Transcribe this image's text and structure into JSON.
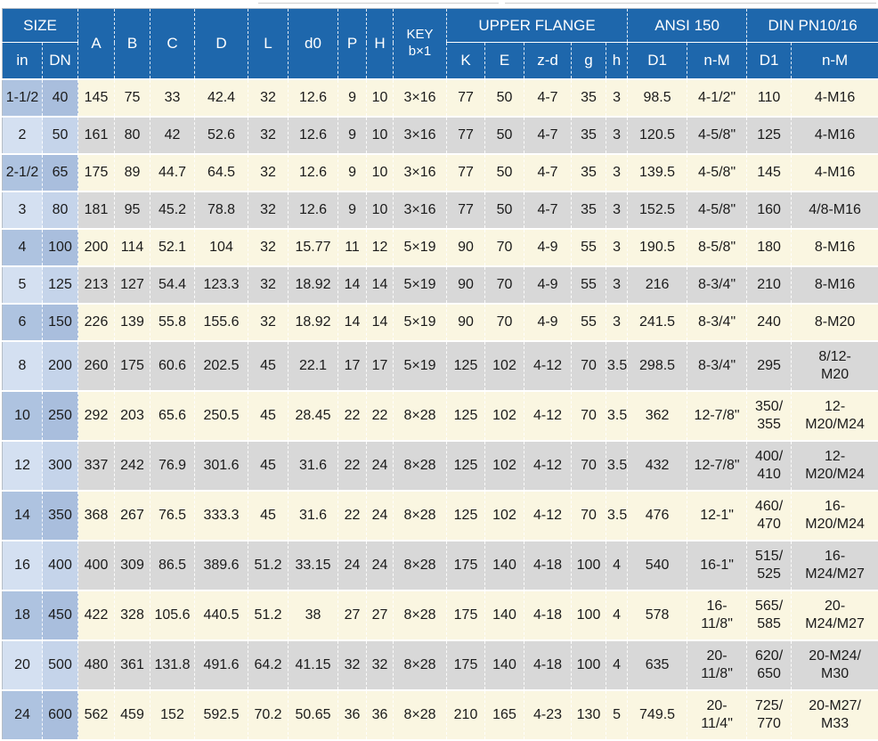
{
  "colors": {
    "header_blue": "#1e67ac",
    "row_cream": "#faf6e1",
    "row_gray": "#d8d8d8",
    "size_col_dark": "#a9bedd",
    "size_col_light": "#c9d7ec",
    "grid_line": "#ffffff"
  },
  "table": {
    "header": {
      "size_group": "SIZE",
      "size_sub": [
        "in",
        "DN"
      ],
      "dim_cols": [
        "A",
        "B",
        "C",
        "D",
        "L",
        "d0",
        "P",
        "H"
      ],
      "key_col": {
        "line1": "KEY",
        "line2": "b×1"
      },
      "upper_flange_group": "UPPER FLANGE",
      "upper_flange_sub": [
        "K",
        "E",
        "z-d",
        "g",
        "h"
      ],
      "ansi_group": "ANSI 150",
      "ansi_sub": [
        "D1",
        "n-M"
      ],
      "din_group": "DIN PN10/16",
      "din_sub": [
        "D1",
        "n-M"
      ]
    },
    "column_keys": [
      "in",
      "dn",
      "a",
      "b",
      "c",
      "d",
      "l",
      "d0",
      "p",
      "h",
      "key",
      "k",
      "e",
      "zd",
      "g",
      "h2",
      "ansi-d1",
      "ansi-nm",
      "din-d1",
      "din-nm"
    ],
    "rows": [
      [
        "1-1/2",
        "40",
        "145",
        "75",
        "33",
        "42.4",
        "32",
        "12.6",
        "9",
        "10",
        "3×16",
        "77",
        "50",
        "4-7",
        "35",
        "3",
        "98.5",
        "4-1/2\"",
        "110",
        "4-M16"
      ],
      [
        "2",
        "50",
        "161",
        "80",
        "42",
        "52.6",
        "32",
        "12.6",
        "9",
        "10",
        "3×16",
        "77",
        "50",
        "4-7",
        "35",
        "3",
        "120.5",
        "4-5/8\"",
        "125",
        "4-M16"
      ],
      [
        "2-1/2",
        "65",
        "175",
        "89",
        "44.7",
        "64.5",
        "32",
        "12.6",
        "9",
        "10",
        "3×16",
        "77",
        "50",
        "4-7",
        "35",
        "3",
        "139.5",
        "4-5/8\"",
        "145",
        "4-M16"
      ],
      [
        "3",
        "80",
        "181",
        "95",
        "45.2",
        "78.8",
        "32",
        "12.6",
        "9",
        "10",
        "3×16",
        "77",
        "50",
        "4-7",
        "35",
        "3",
        "152.5",
        "4-5/8\"",
        "160",
        "4/8-M16"
      ],
      [
        "4",
        "100",
        "200",
        "114",
        "52.1",
        "104",
        "32",
        "15.77",
        "11",
        "12",
        "5×19",
        "90",
        "70",
        "4-9",
        "55",
        "3",
        "190.5",
        "8-5/8\"",
        "180",
        "8-M16"
      ],
      [
        "5",
        "125",
        "213",
        "127",
        "54.4",
        "123.3",
        "32",
        "18.92",
        "14",
        "14",
        "5×19",
        "90",
        "70",
        "4-9",
        "55",
        "3",
        "216",
        "8-3/4\"",
        "210",
        "8-M16"
      ],
      [
        "6",
        "150",
        "226",
        "139",
        "55.8",
        "155.6",
        "32",
        "18.92",
        "14",
        "14",
        "5×19",
        "90",
        "70",
        "4-9",
        "55",
        "3",
        "241.5",
        "8-3/4\"",
        "240",
        "8-M20"
      ],
      [
        "8",
        "200",
        "260",
        "175",
        "60.6",
        "202.5",
        "45",
        "22.1",
        "17",
        "17",
        "5×19",
        "125",
        "102",
        "4-12",
        "70",
        "3.5",
        "298.5",
        "8-3/4\"",
        "295",
        "8/12-\nM20"
      ],
      [
        "10",
        "250",
        "292",
        "203",
        "65.6",
        "250.5",
        "45",
        "28.45",
        "22",
        "22",
        "8×28",
        "125",
        "102",
        "4-12",
        "70",
        "3.5",
        "362",
        "12-7/8\"",
        "350/\n355",
        "12-\nM20/M24"
      ],
      [
        "12",
        "300",
        "337",
        "242",
        "76.9",
        "301.6",
        "45",
        "31.6",
        "22",
        "24",
        "8×28",
        "125",
        "102",
        "4-12",
        "70",
        "3.5",
        "432",
        "12-7/8\"",
        "400/\n410",
        "12-\nM20/M24"
      ],
      [
        "14",
        "350",
        "368",
        "267",
        "76.5",
        "333.3",
        "45",
        "31.6",
        "22",
        "24",
        "8×28",
        "125",
        "102",
        "4-12",
        "70",
        "3.5",
        "476",
        "12-1\"",
        "460/\n470",
        "16-\nM20/M24"
      ],
      [
        "16",
        "400",
        "400",
        "309",
        "86.5",
        "389.6",
        "51.2",
        "33.15",
        "24",
        "24",
        "8×28",
        "175",
        "140",
        "4-18",
        "100",
        "4",
        "540",
        "16-1\"",
        "515/\n525",
        "16-\nM24/M27"
      ],
      [
        "18",
        "450",
        "422",
        "328",
        "105.6",
        "440.5",
        "51.2",
        "38",
        "27",
        "27",
        "8×28",
        "175",
        "140",
        "4-18",
        "100",
        "4",
        "578",
        "16-\n11/8\"",
        "565/\n585",
        "20-\nM24/M27"
      ],
      [
        "20",
        "500",
        "480",
        "361",
        "131.8",
        "491.6",
        "64.2",
        "41.15",
        "32",
        "32",
        "8×28",
        "175",
        "140",
        "4-18",
        "100",
        "4",
        "635",
        "20-\n11/8\"",
        "620/\n650",
        "20-M24/\nM30"
      ],
      [
        "24",
        "600",
        "562",
        "459",
        "152",
        "592.5",
        "70.2",
        "50.65",
        "36",
        "36",
        "8×28",
        "210",
        "165",
        "4-23",
        "130",
        "5",
        "749.5",
        "20-\n11/4\"",
        "725/\n770",
        "20-M27/\nM33"
      ]
    ]
  }
}
